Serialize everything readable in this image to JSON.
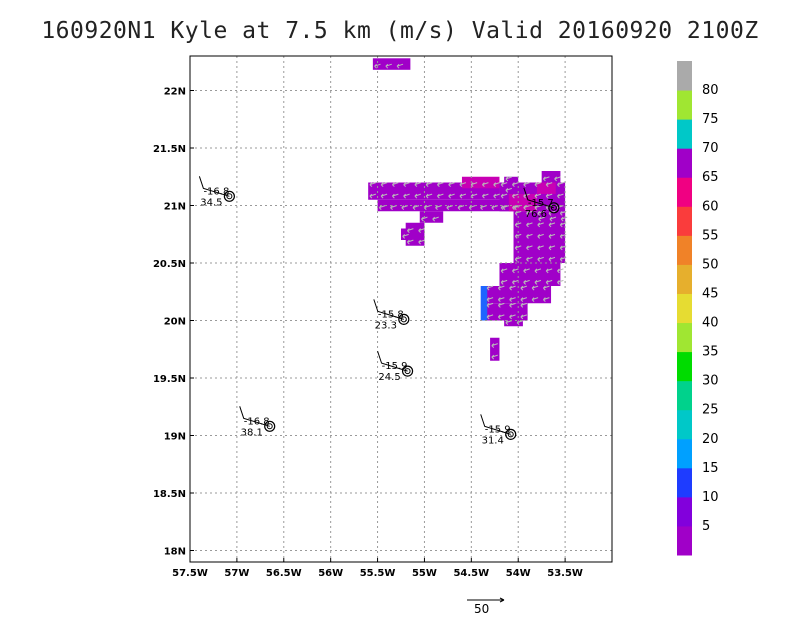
{
  "title": "160920N1 Kyle at 7.5 km (m/s) Valid 20160920 2100Z",
  "chart_data": {
    "type": "heatmap",
    "title": "160920N1 Kyle at 7.5 km (m/s) Valid 20160920 2100Z",
    "xlabel": "",
    "ylabel": "",
    "xlim": [
      -57.5,
      -53.0
    ],
    "ylim": [
      17.9,
      22.3
    ],
    "grid": true,
    "x_ticks": [
      {
        "value": -57.5,
        "label": "57.5W"
      },
      {
        "value": -57.0,
        "label": "57W"
      },
      {
        "value": -56.5,
        "label": "56.5W"
      },
      {
        "value": -56.0,
        "label": "56W"
      },
      {
        "value": -55.5,
        "label": "55.5W"
      },
      {
        "value": -55.0,
        "label": "55W"
      },
      {
        "value": -54.5,
        "label": "54.5W"
      },
      {
        "value": -54.0,
        "label": "54W"
      },
      {
        "value": -53.5,
        "label": "53.5W"
      }
    ],
    "y_ticks": [
      {
        "value": 18.0,
        "label": "18N"
      },
      {
        "value": 18.5,
        "label": "18.5N"
      },
      {
        "value": 19.0,
        "label": "19N"
      },
      {
        "value": 19.5,
        "label": "19.5N"
      },
      {
        "value": 20.0,
        "label": "20N"
      },
      {
        "value": 20.5,
        "label": "20.5N"
      },
      {
        "value": 21.0,
        "label": "21N"
      },
      {
        "value": 21.5,
        "label": "21.5N"
      },
      {
        "value": 22.0,
        "label": "22N"
      }
    ],
    "colorbar": {
      "labels": [
        "5",
        "10",
        "15",
        "20",
        "25",
        "30",
        "35",
        "40",
        "45",
        "50",
        "55",
        "60",
        "65",
        "70",
        "75",
        "80"
      ],
      "colors": [
        "#a000c8",
        "#8200dc",
        "#1e3cff",
        "#00a0ff",
        "#00c8c8",
        "#00d28c",
        "#00dc00",
        "#a0e632",
        "#e6dc32",
        "#e6af2d",
        "#f08228",
        "#fa3c3c",
        "#f00082",
        "#a000c8",
        "#00c8c8",
        "#a0e632",
        "#aaaaaa"
      ]
    },
    "observations": [
      {
        "lon": -57.08,
        "lat": 21.08,
        "temp": "-16.8",
        "speed": "34.5"
      },
      {
        "lon": -55.22,
        "lat": 20.01,
        "temp": "-15.8",
        "speed": "23.3"
      },
      {
        "lon": -55.18,
        "lat": 19.56,
        "temp": "-15.9",
        "speed": "24.5"
      },
      {
        "lon": -56.65,
        "lat": 19.08,
        "temp": "-16.8",
        "speed": "38.1"
      },
      {
        "lon": -54.08,
        "lat": 19.01,
        "temp": "-15.9",
        "speed": "31.4"
      },
      {
        "lon": -53.62,
        "lat": 20.98,
        "temp": "-15.7",
        "speed": "76.6"
      }
    ],
    "wind_regions": [
      {
        "value": 5,
        "cells": [
          [
            -55.55,
            22.18,
            -55.15,
            22.28
          ],
          [
            -55.6,
            21.05,
            -54.2,
            21.2
          ],
          [
            -55.5,
            20.95,
            -54.0,
            21.05
          ],
          [
            -55.05,
            20.85,
            -54.8,
            20.95
          ],
          [
            -54.2,
            20.95,
            -53.5,
            21.2
          ],
          [
            -54.05,
            20.5,
            -53.5,
            20.95
          ],
          [
            -54.2,
            20.3,
            -53.55,
            20.5
          ],
          [
            -54.35,
            20.15,
            -53.65,
            20.3
          ],
          [
            -54.35,
            20.0,
            -53.9,
            20.15
          ],
          [
            -54.15,
            19.95,
            -53.95,
            20.0
          ],
          [
            -55.2,
            20.65,
            -55.0,
            20.85
          ],
          [
            -55.25,
            20.7,
            -55.15,
            20.8
          ],
          [
            -54.3,
            19.65,
            -54.2,
            19.85
          ],
          [
            -53.75,
            21.2,
            -53.55,
            21.3
          ],
          [
            -54.15,
            21.1,
            -54.0,
            21.25
          ],
          [
            -53.8,
            20.85,
            -53.5,
            20.95
          ]
        ]
      },
      {
        "value": 70,
        "cells": [
          [
            -54.6,
            21.15,
            -54.2,
            21.25
          ],
          [
            -54.1,
            20.95,
            -53.8,
            21.1
          ],
          [
            -53.8,
            21.1,
            -53.6,
            21.2
          ]
        ]
      },
      {
        "value": 10,
        "cells": [
          [
            -54.4,
            20.0,
            -54.33,
            20.3
          ]
        ]
      }
    ],
    "reference_vector": {
      "label": "50"
    }
  }
}
